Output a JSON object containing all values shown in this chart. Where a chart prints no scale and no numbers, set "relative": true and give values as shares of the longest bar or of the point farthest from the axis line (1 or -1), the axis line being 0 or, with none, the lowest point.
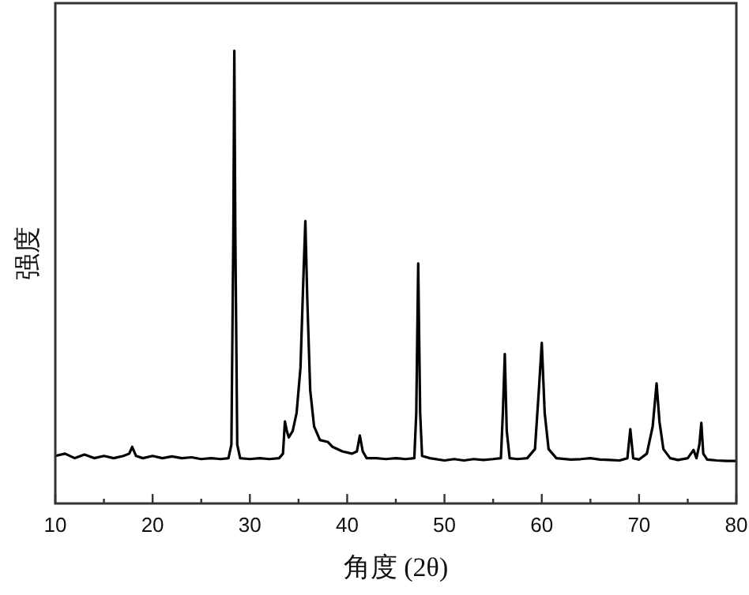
{
  "chart_data": {
    "type": "line",
    "relative": true,
    "xlabel": "角度 (2θ)",
    "ylabel": "强度",
    "xlim": [
      10,
      80
    ],
    "xticks": [
      10,
      {
        "value": 15,
        "label": null
      },
      20,
      {
        "value": 25,
        "label": null
      },
      30,
      {
        "value": 35,
        "label": null
      },
      40,
      {
        "value": 45,
        "label": null
      },
      50,
      {
        "value": 55,
        "label": null
      },
      60,
      {
        "value": 65,
        "label": null
      },
      70,
      {
        "value": 75,
        "label": null
      },
      80
    ],
    "x": [
      10,
      11,
      12,
      13,
      14,
      15,
      16,
      17,
      17.6,
      17.9,
      18.3,
      19,
      20,
      21,
      22,
      23,
      24,
      25,
      26,
      27,
      27.8,
      28.1,
      28.3,
      28.4,
      28.5,
      28.7,
      29,
      30,
      31,
      32,
      33,
      33.4,
      33.6,
      33.8,
      34.0,
      34.4,
      34.8,
      35.2,
      35.5,
      35.7,
      35.9,
      36.2,
      36.6,
      37.2,
      38,
      38.5,
      39.5,
      40.5,
      41,
      41.3,
      41.6,
      42,
      43,
      44,
      45,
      46,
      46.9,
      47.1,
      47.3,
      47.5,
      47.7,
      48.5,
      50,
      51,
      52,
      53,
      54,
      55,
      55.8,
      56.0,
      56.2,
      56.4,
      56.7,
      57.5,
      58.5,
      59.3,
      59.7,
      60.0,
      60.3,
      60.7,
      61.5,
      63,
      64,
      65,
      66,
      67,
      68,
      68.8,
      69.1,
      69.4,
      70,
      70.8,
      71.4,
      71.8,
      72.1,
      72.5,
      73.2,
      74,
      75,
      75.6,
      75.9,
      76.2,
      76.4,
      76.6,
      77,
      78,
      79,
      80
    ],
    "series": [
      {
        "color": "#000000",
        "values": [
          0.105,
          0.11,
          0.1,
          0.108,
          0.1,
          0.105,
          0.1,
          0.105,
          0.11,
          0.125,
          0.105,
          0.1,
          0.105,
          0.1,
          0.104,
          0.1,
          0.102,
          0.098,
          0.1,
          0.098,
          0.1,
          0.13,
          0.6,
          1,
          0.6,
          0.13,
          0.1,
          0.098,
          0.1,
          0.098,
          0.1,
          0.11,
          0.181,
          0.16,
          0.146,
          0.16,
          0.2,
          0.3,
          0.5,
          0.624,
          0.45,
          0.25,
          0.17,
          0.14,
          0.136,
          0.125,
          0.115,
          0.11,
          0.115,
          0.15,
          0.115,
          0.1,
          0.1,
          0.098,
          0.1,
          0.098,
          0.1,
          0.2,
          0.53,
          0.2,
          0.105,
          0.1,
          0.095,
          0.098,
          0.095,
          0.098,
          0.096,
          0.098,
          0.1,
          0.2,
          0.33,
          0.16,
          0.1,
          0.098,
          0.1,
          0.12,
          0.25,
          0.355,
          0.2,
          0.12,
          0.1,
          0.097,
          0.098,
          0.1,
          0.097,
          0.096,
          0.095,
          0.1,
          0.164,
          0.1,
          0.097,
          0.11,
          0.17,
          0.265,
          0.18,
          0.12,
          0.1,
          0.096,
          0.1,
          0.118,
          0.1,
          0.13,
          0.178,
          0.11,
          0.097,
          0.095,
          0.094,
          0.094
        ]
      }
    ]
  }
}
